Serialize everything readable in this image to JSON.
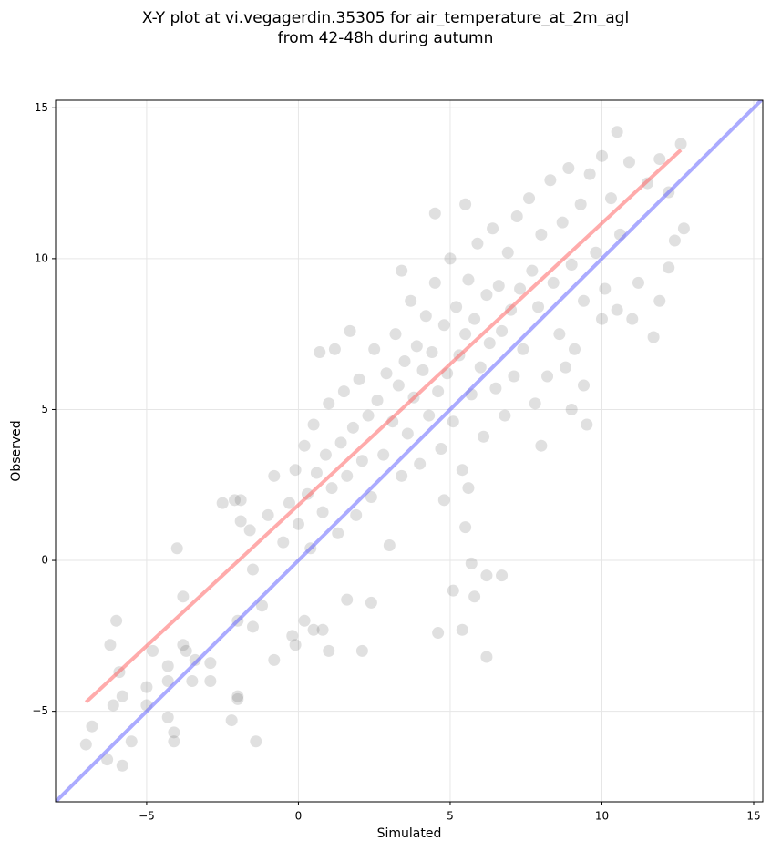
{
  "chart_data": {
    "type": "scatter",
    "title": [
      "X-Y plot at vi.vegagerdin.35305 for air_temperature_at_2m_agl",
      "from 42-48h during autumn"
    ],
    "xlabel": "Simulated",
    "ylabel": "Observed",
    "xlim": [
      -8,
      15.3
    ],
    "ylim": [
      -8,
      15.25
    ],
    "xticks": [
      {
        "value": -5,
        "label": "−5"
      },
      0,
      5,
      10,
      15
    ],
    "yticks": [
      {
        "value": -5,
        "label": "−5"
      },
      0,
      5,
      10,
      15
    ],
    "grid": true,
    "series": [
      {
        "color": "#555555",
        "x": [
          -6.2,
          -6.0,
          -5.9,
          -6.1,
          -5.8,
          -7,
          -6.8,
          -6.3,
          -5.8,
          -5.5,
          -5.0,
          -5.0,
          -4.8,
          -4.3,
          -4.3,
          -4.3,
          -4.1,
          -4.1,
          -4.0,
          -3.8,
          -3.8,
          -3.7,
          -3.5,
          -3.4,
          -2.9,
          -2.9,
          -2.0,
          -2.0,
          -2.2,
          -1.4,
          -2.5,
          -2.1,
          -1.9,
          -1.9,
          -1.6,
          -1.5,
          -2.0,
          -1.5,
          -1.2,
          -0.8,
          -0.2,
          -0.1,
          0.2,
          0.5,
          0.8,
          1.0,
          2.1,
          2.4,
          1.6,
          4.6,
          5.4,
          5.1,
          5.8,
          5.7,
          6.2,
          6.7,
          6.2,
          5.5,
          5.6,
          4.8,
          0.7,
          1.2,
          1.7,
          3.4,
          4.5,
          5.5,
          10.5,
          12.6,
          12.7,
          12.4,
          12.2,
          11.9,
          11.7,
          10.0,
          11.0,
          10.5,
          9.5,
          9.0,
          9.4,
          8.8,
          8.0,
          -1.0,
          -0.8,
          -0.5,
          -0.3,
          -0.1,
          0.0,
          0.2,
          0.3,
          0.4,
          0.5,
          0.6,
          0.8,
          0.9,
          1.0,
          1.1,
          1.3,
          1.4,
          1.5,
          1.6,
          1.8,
          1.9,
          2.0,
          2.1,
          2.3,
          2.4,
          2.5,
          2.6,
          2.8,
          2.9,
          3.0,
          3.1,
          3.2,
          3.3,
          3.4,
          3.5,
          3.6,
          3.7,
          3.8,
          3.9,
          4.0,
          4.1,
          4.2,
          4.3,
          4.4,
          4.5,
          4.6,
          4.7,
          4.8,
          4.9,
          5.0,
          5.1,
          5.2,
          5.3,
          5.4,
          5.5,
          5.6,
          5.7,
          5.8,
          5.9,
          6.0,
          6.1,
          6.2,
          6.3,
          6.4,
          6.5,
          6.6,
          6.7,
          6.8,
          6.9,
          7.0,
          7.1,
          7.2,
          7.3,
          7.4,
          7.6,
          7.7,
          7.8,
          7.9,
          8.0,
          8.2,
          8.3,
          8.4,
          8.6,
          8.7,
          8.9,
          9.0,
          9.1,
          9.3,
          9.4,
          9.6,
          9.8,
          10.0,
          10.1,
          10.3,
          10.6,
          10.9,
          11.2,
          11.5,
          11.9,
          12.2
        ],
        "values": [
          -2.8,
          -2.0,
          -3.7,
          -4.8,
          -4.5,
          -6.1,
          -5.5,
          -6.6,
          -6.8,
          -6.0,
          -4.8,
          -4.2,
          -3.0,
          -3.5,
          -4.0,
          -5.2,
          -5.7,
          -6.0,
          0.4,
          -1.2,
          -2.8,
          -3.0,
          -4.0,
          -3.3,
          -3.4,
          -4.0,
          -4.5,
          -4.6,
          -5.3,
          -6.0,
          1.9,
          2.0,
          2.0,
          1.3,
          1.0,
          -0.3,
          -2.0,
          -2.2,
          -1.5,
          -3.3,
          -2.5,
          -2.8,
          -2.0,
          -2.3,
          -2.3,
          -3.0,
          -3.0,
          -1.4,
          -1.3,
          -2.4,
          -2.3,
          -1.0,
          -1.2,
          -0.1,
          -0.5,
          -0.5,
          -3.2,
          1.1,
          2.4,
          2.0,
          6.9,
          7.0,
          7.6,
          9.6,
          11.5,
          11.8,
          14.2,
          13.8,
          11.0,
          10.6,
          9.7,
          8.6,
          7.4,
          8.0,
          8.0,
          8.3,
          4.5,
          5.0,
          5.8,
          6.4,
          3.8,
          1.5,
          2.8,
          0.6,
          1.9,
          3.0,
          1.2,
          3.8,
          2.2,
          0.4,
          4.5,
          2.9,
          1.6,
          3.5,
          5.2,
          2.4,
          0.9,
          3.9,
          5.6,
          2.8,
          4.4,
          1.5,
          6.0,
          3.3,
          4.8,
          2.1,
          7.0,
          5.3,
          3.5,
          6.2,
          0.5,
          4.6,
          7.5,
          5.8,
          2.8,
          6.6,
          4.2,
          8.6,
          5.4,
          7.1,
          3.2,
          6.3,
          8.1,
          4.8,
          6.9,
          9.2,
          5.6,
          3.7,
          7.8,
          6.2,
          10.0,
          4.6,
          8.4,
          6.8,
          3.0,
          7.5,
          9.3,
          5.5,
          8.0,
          10.5,
          6.4,
          4.1,
          8.8,
          7.2,
          11.0,
          5.7,
          9.1,
          7.6,
          4.8,
          10.2,
          8.3,
          6.1,
          11.4,
          9.0,
          7.0,
          12.0,
          9.6,
          5.2,
          8.4,
          10.8,
          6.1,
          12.6,
          9.2,
          7.5,
          11.2,
          13.0,
          9.8,
          7.0,
          11.8,
          8.6,
          12.8,
          10.2,
          13.4,
          9.0,
          12.0,
          10.8,
          13.2,
          9.2,
          12.5,
          13.3,
          12.2
        ]
      }
    ],
    "lines": [
      {
        "color": "#ff6666",
        "x": [
          -7,
          12.6
        ],
        "values": [
          -4.7,
          13.6
        ]
      },
      {
        "color": "#6666ff",
        "x": [
          -8,
          15.3
        ],
        "values": [
          -8,
          15.3
        ]
      }
    ]
  }
}
